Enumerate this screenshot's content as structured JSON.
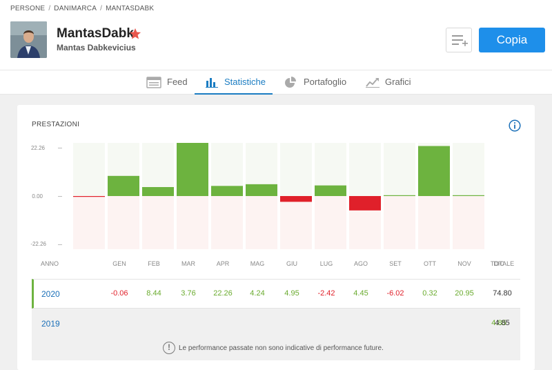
{
  "breadcrumb": [
    "PERSONE",
    "DANIMARCA",
    "MANTASDABK"
  ],
  "profile": {
    "username": "MantasDabk",
    "full_name": "Mantas Dabkevicius",
    "copy_label": "Copia"
  },
  "tabs": [
    {
      "label": "Feed",
      "icon": "feed-icon"
    },
    {
      "label": "Statistiche",
      "icon": "stats-icon",
      "active": true
    },
    {
      "label": "Portafoglio",
      "icon": "pie-icon"
    },
    {
      "label": "Grafici",
      "icon": "chart-icon"
    }
  ],
  "performance": {
    "title": "PRESTAZIONI",
    "y_labels": [
      "22.26",
      "0.00",
      "-22.26"
    ],
    "columns": [
      "ANNO",
      "GEN",
      "FEB",
      "MAR",
      "APR",
      "MAG",
      "GIU",
      "LUG",
      "AGO",
      "SET",
      "OTT",
      "NOV",
      "DIC",
      "TOTALE"
    ],
    "rows": [
      {
        "year": "2020",
        "values": [
          "-0.06",
          "8.44",
          "3.76",
          "22.26",
          "4.24",
          "4.95",
          "-2.42",
          "4.45",
          "-6.02",
          "0.32",
          "20.95",
          ""
        ],
        "total": "74.80"
      },
      {
        "year": "2019",
        "values": [
          "",
          "",
          "",
          "",
          "",
          "",
          "",
          "",
          "",
          "",
          "",
          "4.85"
        ],
        "total": "4.85"
      }
    ],
    "disclaimer": "Le performance passate non sono indicative di performance future."
  },
  "colors": {
    "positive": "#6db33f",
    "negative": "#e0202a",
    "accent": "#1e8fea"
  },
  "chart_data": {
    "type": "bar",
    "categories": [
      "GEN",
      "FEB",
      "MAR",
      "APR",
      "MAG",
      "GIU",
      "LUG",
      "AGO",
      "SET",
      "OTT",
      "NOV",
      "DIC"
    ],
    "values": [
      -0.06,
      8.44,
      3.76,
      22.26,
      4.24,
      4.95,
      -2.42,
      4.45,
      -6.02,
      0.32,
      20.95,
      0
    ],
    "ylim": [
      -22.26,
      22.26
    ],
    "title": "PRESTAZIONI"
  }
}
